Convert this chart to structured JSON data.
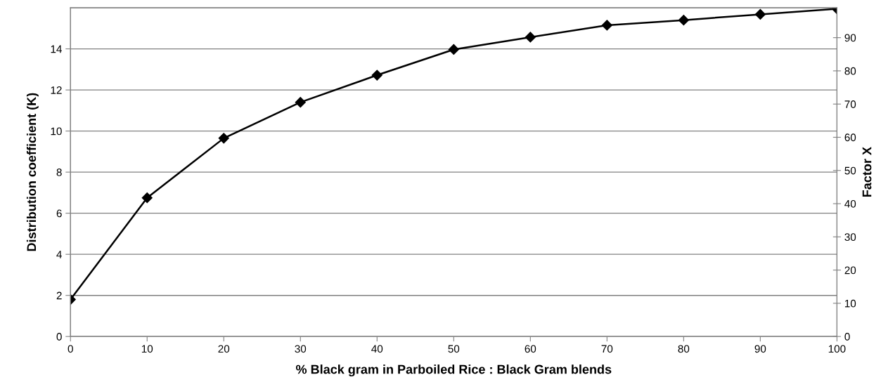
{
  "chart_data": {
    "type": "line",
    "xlabel": "% Black gram in Parboiled Rice : Black Gram blends",
    "ylabel": "Distribution coefficient (K)",
    "y2label": "Factor X",
    "x": [
      0,
      10,
      20,
      30,
      40,
      50,
      60,
      70,
      80,
      90,
      100
    ],
    "series": [
      {
        "color": "#000000",
        "values": [
          1.8,
          6.75,
          9.65,
          11.4,
          12.72,
          13.97,
          14.57,
          15.15,
          15.4,
          15.68,
          15.95
        ]
      }
    ],
    "xlim": [
      0,
      100
    ],
    "xticks": [
      0,
      10,
      20,
      30,
      40,
      50,
      60,
      70,
      80,
      90,
      100
    ],
    "ylim": [
      0,
      16
    ],
    "yticks": [
      0,
      2,
      4,
      6,
      8,
      10,
      12,
      14
    ],
    "y2lim": [
      0,
      99
    ],
    "y2ticks": [
      0,
      10,
      20,
      30,
      40,
      50,
      60,
      70,
      80,
      90
    ],
    "grid": "y",
    "marker": "diamond",
    "line_style": "solid"
  }
}
